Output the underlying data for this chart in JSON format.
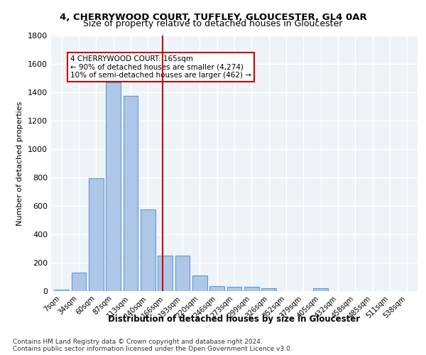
{
  "title_line1": "4, CHERRYWOOD COURT, TUFFLEY, GLOUCESTER, GL4 0AR",
  "title_line2": "Size of property relative to detached houses in Gloucester",
  "xlabel": "Distribution of detached houses by size in Gloucester",
  "ylabel": "Number of detached properties",
  "footnote1": "Contains HM Land Registry data © Crown copyright and database right 2024.",
  "footnote2": "Contains public sector information licensed under the Open Government Licence v3.0.",
  "bar_labels": [
    "7sqm",
    "34sqm",
    "60sqm",
    "87sqm",
    "113sqm",
    "140sqm",
    "166sqm",
    "193sqm",
    "220sqm",
    "246sqm",
    "273sqm",
    "299sqm",
    "326sqm",
    "352sqm",
    "379sqm",
    "405sqm",
    "432sqm",
    "458sqm",
    "485sqm",
    "511sqm",
    "538sqm"
  ],
  "bar_values": [
    10,
    130,
    795,
    1470,
    1375,
    575,
    250,
    250,
    110,
    35,
    30,
    30,
    20,
    0,
    0,
    20,
    0,
    0,
    0,
    0,
    0
  ],
  "bar_color": "#aec6e8",
  "bar_edgecolor": "#5b9bd5",
  "background_color": "#eef3f8",
  "grid_color": "#ffffff",
  "ylim": [
    0,
    1800
  ],
  "yticks": [
    0,
    200,
    400,
    600,
    800,
    1000,
    1200,
    1400,
    1600,
    1800
  ],
  "vline_x": 5.85,
  "vline_color": "#cc0000",
  "annotation_text": "4 CHERRYWOOD COURT: 165sqm\n← 90% of detached houses are smaller (4,274)\n10% of semi-detached houses are larger (462) →",
  "annotation_box_color": "#cc0000",
  "property_size_sqm": 165
}
